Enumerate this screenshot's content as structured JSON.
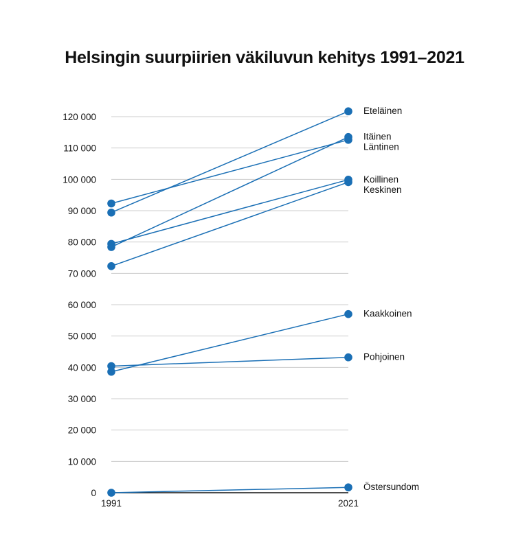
{
  "chart_data": {
    "type": "line",
    "title": "Helsingin suurpiirien väkiluvun kehitys 1991–2021",
    "categories": [
      "1991",
      "2021"
    ],
    "ylim": [
      0,
      120000
    ],
    "yticks": [
      {
        "value": 0,
        "label": "0"
      },
      {
        "value": 10000,
        "label": "10 000"
      },
      {
        "value": 20000,
        "label": "20 000"
      },
      {
        "value": 30000,
        "label": "30 000"
      },
      {
        "value": 40000,
        "label": "40 000"
      },
      {
        "value": 50000,
        "label": "50 000"
      },
      {
        "value": 60000,
        "label": "60 000"
      },
      {
        "value": 70000,
        "label": "70 000"
      },
      {
        "value": 80000,
        "label": "80 000"
      },
      {
        "value": 90000,
        "label": "90 000"
      },
      {
        "value": 100000,
        "label": "100 000"
      },
      {
        "value": 110000,
        "label": "110 000"
      },
      {
        "value": 120000,
        "label": "120 000"
      }
    ],
    "grid": true,
    "legend": "direct labels at right",
    "series": [
      {
        "name": "Eteläinen",
        "values": [
          89400,
          121700
        ]
      },
      {
        "name": "Itäinen",
        "values": [
          78400,
          113500
        ]
      },
      {
        "name": "Läntinen",
        "values": [
          92300,
          112600
        ]
      },
      {
        "name": "Koillinen",
        "values": [
          79400,
          99900
        ]
      },
      {
        "name": "Keskinen",
        "values": [
          72300,
          99100
        ]
      },
      {
        "name": "Kaakkoinen",
        "values": [
          38600,
          57000
        ]
      },
      {
        "name": "Pohjoinen",
        "values": [
          40400,
          43200
        ]
      },
      {
        "name": "Östersundom",
        "values": [
          0,
          1700
        ]
      }
    ],
    "colors": {
      "series": "#1a6fb5",
      "grid": "#cccccc",
      "axis": "#111111"
    }
  }
}
